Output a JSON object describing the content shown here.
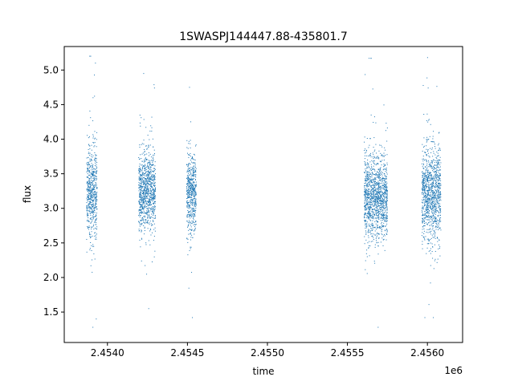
{
  "chart_data": {
    "type": "scatter",
    "title": "1SWASPJ144447.88-435801.7",
    "xlabel": "time",
    "ylabel": "flux",
    "x_offset_label": "1e6",
    "xlim": [
      2453730,
      2456220
    ],
    "ylim": [
      1.06,
      5.34
    ],
    "x_ticks": [
      {
        "value": 2454000,
        "label": "2.4540"
      },
      {
        "value": 2454500,
        "label": "2.4545"
      },
      {
        "value": 2455000,
        "label": "2.4550"
      },
      {
        "value": 2455500,
        "label": "2.4555"
      },
      {
        "value": 2456000,
        "label": "2.4560"
      }
    ],
    "y_ticks": [
      {
        "value": 1.5,
        "label": "1.5"
      },
      {
        "value": 2.0,
        "label": "2.0"
      },
      {
        "value": 2.5,
        "label": "2.5"
      },
      {
        "value": 3.0,
        "label": "3.0"
      },
      {
        "value": 3.5,
        "label": "3.5"
      },
      {
        "value": 4.0,
        "label": "4.0"
      },
      {
        "value": 4.5,
        "label": "4.5"
      },
      {
        "value": 5.0,
        "label": "5.0"
      }
    ],
    "grid": false,
    "point_color": "#1f77b4",
    "series": [
      {
        "x": [
          2453875,
          2453880,
          2453885,
          2453890,
          2453895,
          2453900,
          2453905,
          2453910,
          2453915,
          2453920,
          2453925,
          2453930
        ],
        "y": [
          3.2,
          2.9,
          4.2,
          2.4,
          3.6,
          3.0,
          3.4,
          4.6,
          2.7,
          3.3,
          5.1,
          1.4
        ]
      },
      {
        "x": [
          2454210,
          2454225,
          2454240,
          2454255,
          2454270,
          2454285
        ],
        "y": [
          3.3,
          2.8,
          3.9,
          3.1,
          3.6,
          2.9
        ]
      }
    ],
    "clusters": [
      {
        "x_min": 2453870,
        "x_max": 2453935,
        "median": 3.25,
        "spread": 0.32,
        "y_min": 1.28,
        "y_max": 5.2
      },
      {
        "x_min": 2454195,
        "x_max": 2454300,
        "median": 3.25,
        "spread": 0.28,
        "y_min": 1.55,
        "y_max": 4.95
      },
      {
        "x_min": 2454495,
        "x_max": 2454555,
        "median": 3.2,
        "spread": 0.28,
        "y_min": 1.42,
        "y_max": 4.75
      },
      {
        "x_min": 2455605,
        "x_max": 2455750,
        "median": 3.15,
        "spread": 0.3,
        "y_min": 1.28,
        "y_max": 5.17
      },
      {
        "x_min": 2455965,
        "x_max": 2456085,
        "median": 3.2,
        "spread": 0.32,
        "y_min": 1.42,
        "y_max": 5.18
      }
    ]
  }
}
